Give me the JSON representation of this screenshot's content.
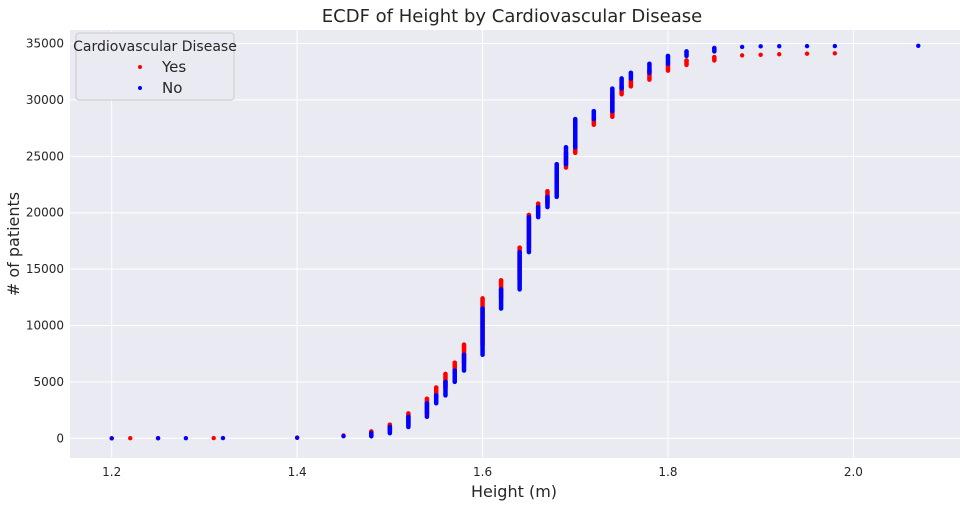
{
  "chart_data": {
    "type": "scatter",
    "title": "ECDF of Height by Cardiovascular Disease",
    "xlabel": "Height (m)",
    "ylabel": "# of patients",
    "xlim": [
      1.155,
      2.115
    ],
    "ylim": [
      -1750,
      36200
    ],
    "xticks": [
      1.2,
      1.4,
      1.6,
      1.8,
      2.0
    ],
    "xtick_labels": [
      "1.2",
      "1.4",
      "1.6",
      "1.8",
      "2.0"
    ],
    "yticks": [
      0,
      5000,
      10000,
      15000,
      20000,
      25000,
      30000,
      35000
    ],
    "ytick_labels": [
      "0",
      "5000",
      "10000",
      "15000",
      "20000",
      "25000",
      "30000",
      "35000"
    ],
    "grid": true,
    "legend": {
      "title": "Cardiovascular Disease",
      "placement": "top-left"
    },
    "series": [
      {
        "name": "Yes",
        "color": "#ff0000",
        "x": [
          1.2,
          1.22,
          1.25,
          1.31,
          1.4,
          1.45,
          1.48,
          1.5,
          1.52,
          1.54,
          1.55,
          1.56,
          1.57,
          1.58,
          1.6,
          1.62,
          1.64,
          1.65,
          1.66,
          1.67,
          1.68,
          1.69,
          1.7,
          1.72,
          1.74,
          1.75,
          1.76,
          1.78,
          1.8,
          1.82,
          1.85,
          1.88,
          1.9,
          1.92,
          1.95,
          1.98
        ],
        "y": [
          0,
          5,
          10,
          20,
          60,
          250,
          600,
          1200,
          2200,
          3500,
          4500,
          5700,
          6700,
          8300,
          12400,
          14000,
          16900,
          19800,
          20800,
          21900,
          24000,
          25300,
          27800,
          28500,
          30500,
          31200,
          31800,
          32600,
          33100,
          33500,
          33800,
          33950,
          34000,
          34050,
          34100,
          34130
        ]
      },
      {
        "name": "No",
        "color": "#0000ff",
        "x": [
          1.2,
          1.25,
          1.28,
          1.32,
          1.4,
          1.45,
          1.48,
          1.5,
          1.52,
          1.54,
          1.55,
          1.56,
          1.57,
          1.58,
          1.6,
          1.62,
          1.64,
          1.65,
          1.66,
          1.67,
          1.68,
          1.69,
          1.7,
          1.72,
          1.74,
          1.75,
          1.76,
          1.78,
          1.8,
          1.82,
          1.85,
          1.88,
          1.9,
          1.92,
          1.95,
          1.98,
          2.07
        ],
        "y": [
          0,
          5,
          10,
          15,
          40,
          180,
          450,
          1000,
          1900,
          3100,
          3800,
          5000,
          6000,
          7400,
          11500,
          13200,
          16500,
          19600,
          20500,
          21400,
          24300,
          25800,
          28300,
          29000,
          31000,
          31900,
          32400,
          33200,
          33900,
          34300,
          34600,
          34700,
          34750,
          34760,
          34770,
          34780,
          34800
        ]
      }
    ]
  }
}
